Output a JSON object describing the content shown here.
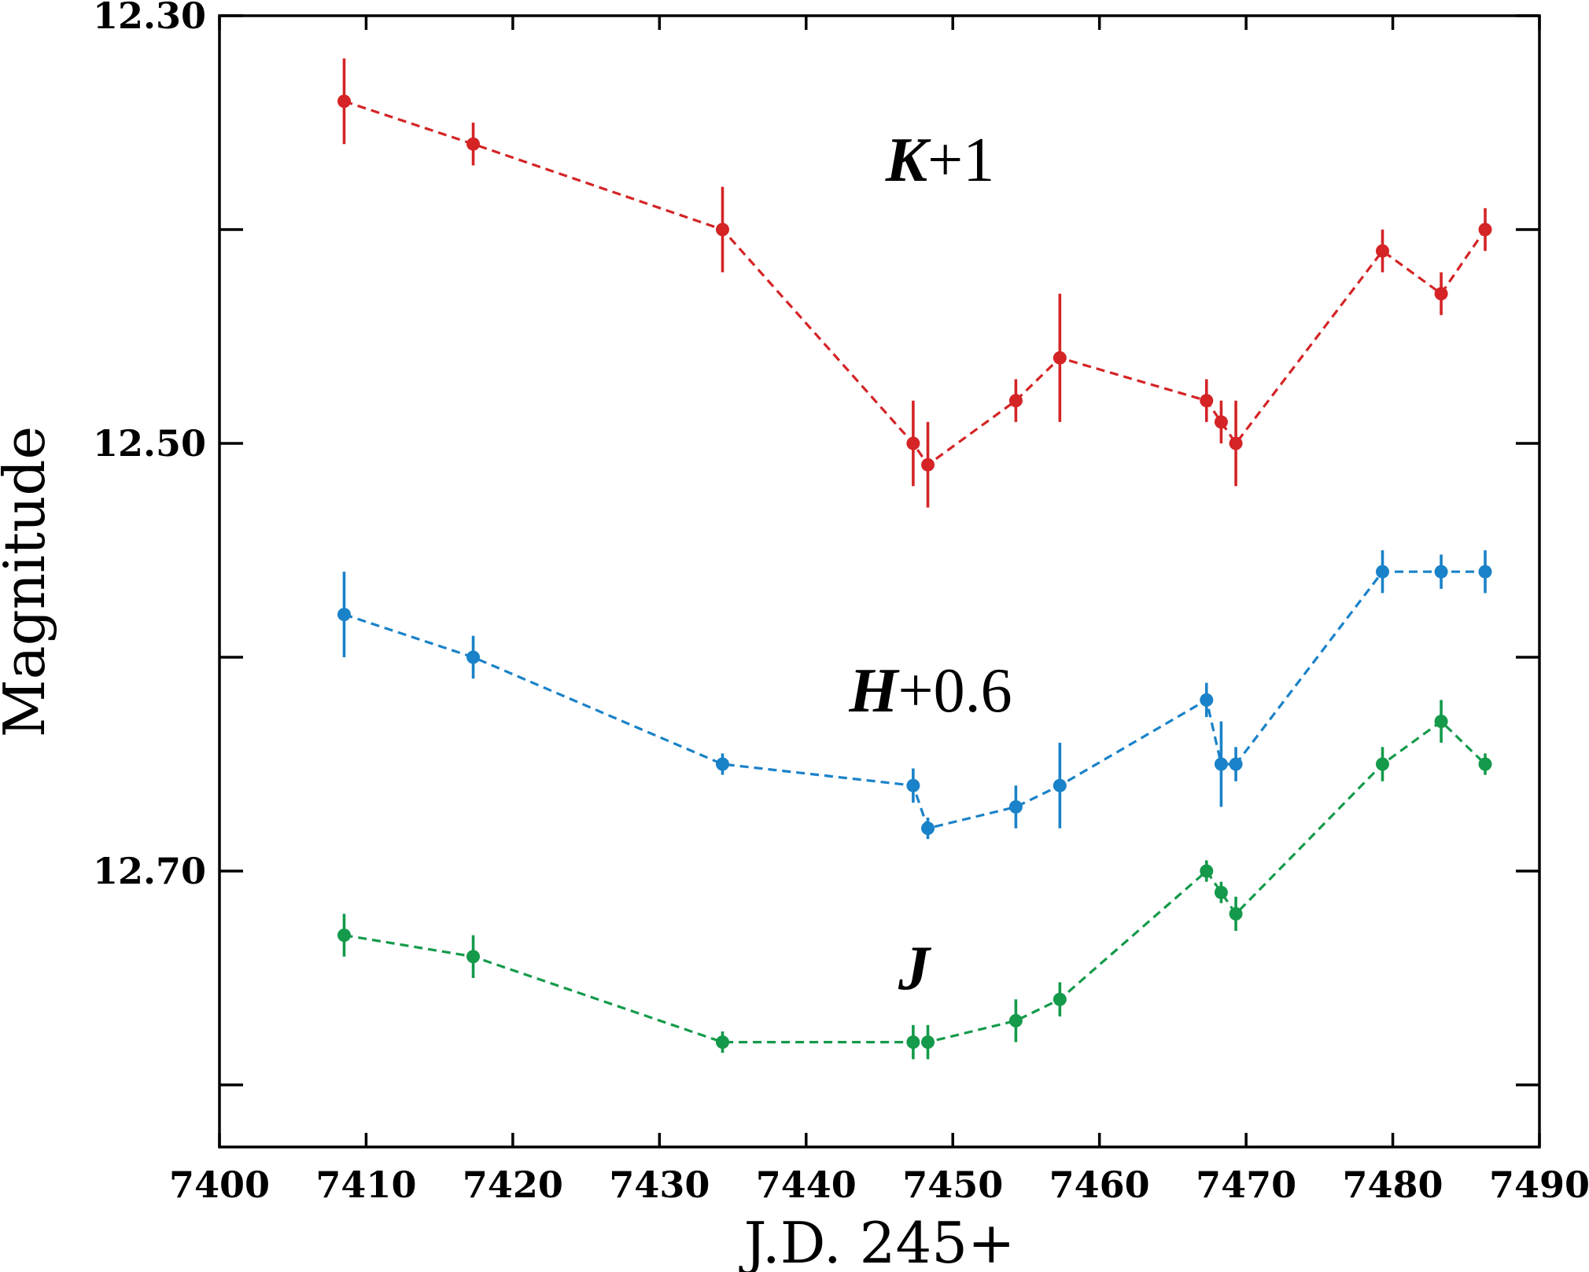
{
  "chart_data": {
    "type": "line",
    "title": "",
    "xlabel": "J.D. 245+",
    "ylabel": "Magnitude",
    "xlim": [
      7400,
      7490
    ],
    "ylim": [
      12.3,
      12.81
    ],
    "y_inverted": true,
    "grid": false,
    "x_ticks": [
      7400,
      7410,
      7420,
      7430,
      7440,
      7450,
      7460,
      7470,
      7480,
      7490
    ],
    "x_tick_labels": [
      "7400",
      "7410",
      "7420",
      "7430",
      "7440",
      "7450",
      "7460",
      "7470",
      "7480",
      "7490"
    ],
    "y_major_ticks": [
      12.3,
      12.5,
      12.7
    ],
    "y_tick_labels": [
      "12.30",
      "12.50",
      "12.70"
    ],
    "y_minor_ticks": [
      12.4,
      12.6,
      12.8
    ],
    "x": [
      7408.5,
      7417.3,
      7434.3,
      7447.3,
      7448.3,
      7454.3,
      7457.3,
      7467.3,
      7468.3,
      7469.3,
      7479.3,
      7483.3,
      7486.3
    ],
    "series": [
      {
        "label": "K+1",
        "label_main": "K",
        "label_suffix": "+1",
        "color": "#d42426",
        "values": [
          12.34,
          12.36,
          12.4,
          12.5,
          12.51,
          12.48,
          12.46,
          12.48,
          12.49,
          12.5,
          12.41,
          12.43,
          12.4
        ],
        "errors": [
          0.02,
          0.01,
          0.02,
          0.02,
          0.02,
          0.01,
          0.03,
          0.01,
          0.01,
          0.02,
          0.01,
          0.01,
          0.01
        ]
      },
      {
        "label": "H+0.6",
        "label_main": "H",
        "label_suffix": "+0.6",
        "color": "#1a82c8",
        "values": [
          12.58,
          12.6,
          12.65,
          12.66,
          12.68,
          12.67,
          12.66,
          12.62,
          12.65,
          12.65,
          12.56,
          12.56,
          12.56
        ],
        "errors": [
          0.02,
          0.01,
          0.005,
          0.008,
          0.005,
          0.01,
          0.02,
          0.008,
          0.02,
          0.008,
          0.01,
          0.008,
          0.01
        ]
      },
      {
        "label": "J",
        "label_main": "J",
        "label_suffix": "",
        "color": "#149a4a",
        "values": [
          12.73,
          12.74,
          12.78,
          12.78,
          12.78,
          12.77,
          12.76,
          12.7,
          12.71,
          12.72,
          12.65,
          12.63,
          12.65
        ],
        "errors": [
          0.01,
          0.01,
          0.005,
          0.008,
          0.008,
          0.01,
          0.008,
          0.005,
          0.005,
          0.008,
          0.008,
          0.01,
          0.005
        ]
      }
    ]
  }
}
